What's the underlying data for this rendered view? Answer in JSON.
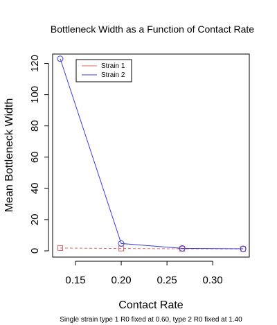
{
  "chart_data": {
    "type": "line",
    "title": "Bottleneck Width as a Function of Contact Rate",
    "xlabel": "Contact Rate",
    "ylabel": "Mean Bottleneck Width",
    "caption": "Single strain type 1 R0 fixed at 0.60, type 2 R0 fixed at 1.40",
    "xlim": [
      0.125,
      0.34
    ],
    "ylim": [
      -4,
      126
    ],
    "xticks": [
      0.15,
      0.2,
      0.25,
      0.3
    ],
    "xtick_labels": [
      "0.15",
      "0.20",
      "0.25",
      "0.30"
    ],
    "yticks": [
      0,
      20,
      40,
      60,
      80,
      100,
      120
    ],
    "ytick_labels": [
      "0",
      "20",
      "40",
      "60",
      "80",
      "100",
      "120"
    ],
    "grid": false,
    "legend_position": "top-left",
    "series": [
      {
        "name": "Strain 1",
        "color": "#e06666",
        "line_style": "dashed",
        "marker": "square",
        "x": [
          0.1333,
          0.2,
          0.2667,
          0.3333
        ],
        "y": [
          1.8,
          1.5,
          1.3,
          1.2
        ]
      },
      {
        "name": "Strain 2",
        "color": "#3b3bdc",
        "line_style": "solid",
        "marker": "circle",
        "x": [
          0.1333,
          0.2,
          0.2667,
          0.3333
        ],
        "y": [
          123,
          4.7,
          1.6,
          1.3
        ]
      }
    ]
  }
}
